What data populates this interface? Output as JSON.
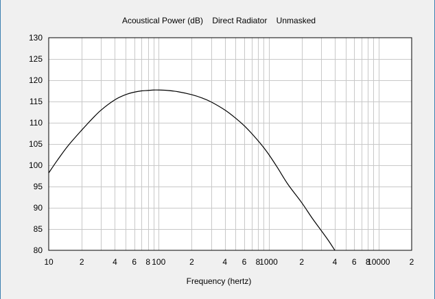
{
  "window": {
    "background": "#f0f0f0",
    "plot_background": "#ffffff",
    "grid_color": "#c8c8c8",
    "curve_color": "#000000"
  },
  "chart_data": {
    "type": "line",
    "title": "Acoustical Power (dB)    Direct Radiator    Unmasked",
    "xlabel": "Frequency (hertz)",
    "ylabel": "",
    "xscale": "log",
    "xlim": [
      10,
      20000
    ],
    "ylim": [
      80,
      130
    ],
    "grid": true,
    "x_ticks": [
      {
        "value": 10,
        "label": "10"
      },
      {
        "value": 20,
        "label": "2"
      },
      {
        "value": 40,
        "label": "4"
      },
      {
        "value": 60,
        "label": "6"
      },
      {
        "value": 80,
        "label": "8"
      },
      {
        "value": 100,
        "label": "100"
      },
      {
        "value": 200,
        "label": "2"
      },
      {
        "value": 400,
        "label": "4"
      },
      {
        "value": 600,
        "label": "6"
      },
      {
        "value": 800,
        "label": "8"
      },
      {
        "value": 1000,
        "label": "1000"
      },
      {
        "value": 2000,
        "label": "2"
      },
      {
        "value": 4000,
        "label": "4"
      },
      {
        "value": 6000,
        "label": "6"
      },
      {
        "value": 8000,
        "label": "8"
      },
      {
        "value": 10000,
        "label": "10000"
      },
      {
        "value": 20000,
        "label": "2"
      }
    ],
    "y_ticks": [
      80,
      85,
      90,
      95,
      100,
      105,
      110,
      115,
      120,
      125,
      130
    ],
    "series": [
      {
        "x": [
          10,
          12,
          15,
          20,
          25,
          30,
          40,
          50,
          60,
          70,
          80,
          90,
          100,
          120,
          150,
          200,
          250,
          300,
          400,
          500,
          600,
          700,
          800,
          900,
          1000,
          1200,
          1500,
          2000,
          2500,
          3000,
          3500,
          4000
        ],
        "y": [
          98.2,
          101.2,
          104.6,
          108.3,
          111.0,
          113.0,
          115.4,
          116.6,
          117.2,
          117.5,
          117.6,
          117.7,
          117.7,
          117.6,
          117.3,
          116.6,
          115.8,
          114.9,
          113.0,
          111.1,
          109.3,
          107.5,
          105.8,
          104.2,
          102.6,
          99.5,
          95.5,
          91.2,
          87.5,
          84.7,
          82.3,
          80.0
        ]
      }
    ]
  }
}
